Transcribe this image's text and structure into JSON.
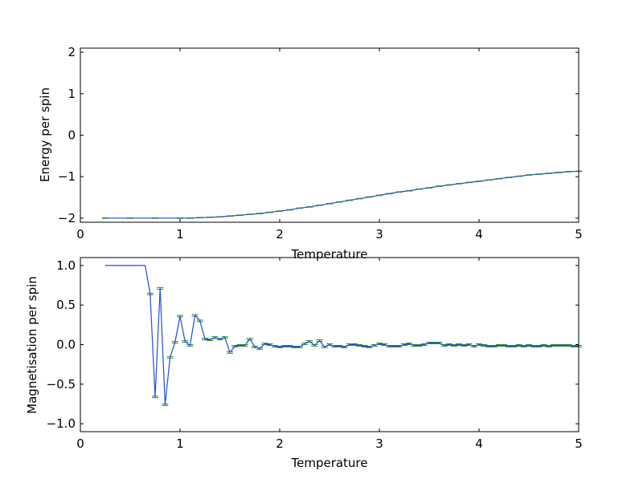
{
  "chart_data": [
    {
      "type": "line",
      "xlabel": "Temperature",
      "ylabel": "Energy per spin",
      "xlim": [
        0,
        5
      ],
      "ylim": [
        -2.1,
        2.1
      ],
      "xticks": [
        "0",
        "1",
        "2",
        "3",
        "4",
        "5"
      ],
      "yticks": [
        "−2",
        "−1",
        "0",
        "1",
        "2"
      ],
      "xtick_values": [
        0,
        1,
        2,
        3,
        4,
        5
      ],
      "ytick_values": [
        -2,
        -1,
        0,
        1,
        2
      ],
      "line_color": "#1f4fd8",
      "errorbar_color": "#2e8b2e",
      "x": [
        0.25,
        0.5,
        0.75,
        1.0,
        1.1,
        1.2,
        1.3,
        1.4,
        1.5,
        1.6,
        1.7,
        1.8,
        1.9,
        2.0,
        2.1,
        2.2,
        2.3,
        2.4,
        2.5,
        2.6,
        2.7,
        2.8,
        2.9,
        3.0,
        3.1,
        3.2,
        3.3,
        3.4,
        3.5,
        3.6,
        3.7,
        3.8,
        3.9,
        4.0,
        4.1,
        4.2,
        4.3,
        4.4,
        4.5,
        4.6,
        4.7,
        4.8,
        4.9,
        5.0
      ],
      "values": [
        -2.0,
        -2.0,
        -2.0,
        -2.0,
        -2.0,
        -1.99,
        -1.98,
        -1.97,
        -1.95,
        -1.93,
        -1.91,
        -1.89,
        -1.86,
        -1.83,
        -1.8,
        -1.76,
        -1.73,
        -1.69,
        -1.65,
        -1.61,
        -1.57,
        -1.53,
        -1.49,
        -1.45,
        -1.41,
        -1.37,
        -1.34,
        -1.3,
        -1.27,
        -1.23,
        -1.2,
        -1.17,
        -1.14,
        -1.11,
        -1.08,
        -1.05,
        -1.02,
        -0.99,
        -0.96,
        -0.94,
        -0.92,
        -0.9,
        -0.88,
        -0.87
      ]
    },
    {
      "type": "line",
      "xlabel": "Temperature",
      "ylabel": "Magnetisation per spin",
      "xlim": [
        0,
        5
      ],
      "ylim": [
        -1.1,
        1.1
      ],
      "xticks": [
        "0",
        "1",
        "2",
        "3",
        "4",
        "5"
      ],
      "yticks": [
        "−1.0",
        "−0.5",
        "0.0",
        "0.5",
        "1.0"
      ],
      "xtick_values": [
        0,
        1,
        2,
        3,
        4,
        5
      ],
      "ytick_values": [
        -1.0,
        -0.5,
        0.0,
        0.5,
        1.0
      ],
      "line_color": "#1f4fd8",
      "errorbar_color": "#2e8b2e",
      "x": [
        0.25,
        0.3,
        0.35,
        0.4,
        0.45,
        0.5,
        0.55,
        0.6,
        0.65,
        0.7,
        0.75,
        0.8,
        0.85,
        0.9,
        0.95,
        1.0,
        1.05,
        1.1,
        1.15,
        1.2,
        1.25,
        1.3,
        1.35,
        1.4,
        1.45,
        1.5,
        1.55,
        1.6,
        1.65,
        1.7,
        1.75,
        1.8,
        1.85,
        1.9,
        1.95,
        2.0,
        2.05,
        2.1,
        2.15,
        2.2,
        2.25,
        2.3,
        2.35,
        2.4,
        2.45,
        2.5,
        2.55,
        2.6,
        2.65,
        2.7,
        2.75,
        2.8,
        2.85,
        2.9,
        2.95,
        3.0,
        3.05,
        3.1,
        3.15,
        3.2,
        3.25,
        3.3,
        3.35,
        3.4,
        3.45,
        3.5,
        3.55,
        3.6,
        3.65,
        3.7,
        3.75,
        3.8,
        3.85,
        3.9,
        3.95,
        4.0,
        4.05,
        4.1,
        4.15,
        4.2,
        4.25,
        4.3,
        4.35,
        4.4,
        4.45,
        4.5,
        4.55,
        4.6,
        4.65,
        4.7,
        4.75,
        4.8,
        4.85,
        4.9,
        4.95,
        5.0
      ],
      "values": [
        1.0,
        1.0,
        1.0,
        1.0,
        1.0,
        1.0,
        1.0,
        1.0,
        1.0,
        0.64,
        -0.66,
        0.71,
        -0.76,
        -0.16,
        0.03,
        0.36,
        0.04,
        -0.01,
        0.37,
        0.3,
        0.07,
        0.06,
        0.09,
        0.07,
        0.09,
        -0.1,
        -0.02,
        -0.01,
        -0.01,
        0.07,
        -0.03,
        -0.05,
        0.01,
        0.0,
        -0.02,
        -0.03,
        -0.02,
        -0.02,
        -0.03,
        -0.03,
        0.01,
        0.04,
        -0.01,
        0.05,
        -0.03,
        0.0,
        -0.02,
        -0.02,
        -0.03,
        0.0,
        0.0,
        -0.01,
        -0.02,
        -0.03,
        -0.01,
        0.01,
        0.0,
        -0.02,
        -0.02,
        -0.02,
        0.0,
        0.01,
        -0.01,
        -0.01,
        0.0,
        0.02,
        0.02,
        0.02,
        -0.01,
        0.0,
        -0.01,
        0.0,
        -0.01,
        0.0,
        -0.02,
        0.0,
        -0.01,
        -0.02,
        -0.02,
        -0.01,
        -0.01,
        -0.02,
        -0.02,
        -0.01,
        -0.02,
        -0.01,
        -0.02,
        -0.02,
        -0.01,
        -0.02,
        -0.01,
        -0.01,
        -0.01,
        -0.01,
        -0.02,
        -0.02
      ],
      "errors": [
        0.0,
        0.0,
        0.0,
        0.0,
        0.0,
        0.0,
        0.0,
        0.0,
        0.0,
        0.01,
        0.01,
        0.01,
        0.01,
        0.01,
        0.01,
        0.01,
        0.01,
        0.01,
        0.01,
        0.01,
        0.01,
        0.01,
        0.01,
        0.01,
        0.01,
        0.01,
        0.01,
        0.01,
        0.01,
        0.01,
        0.01,
        0.01,
        0.01,
        0.01,
        0.01,
        0.01,
        0.01,
        0.01,
        0.01,
        0.01,
        0.01,
        0.01,
        0.01,
        0.01,
        0.01,
        0.01,
        0.01,
        0.01,
        0.01,
        0.01,
        0.01,
        0.01,
        0.01,
        0.01,
        0.01,
        0.01,
        0.01,
        0.01,
        0.01,
        0.01,
        0.01,
        0.01,
        0.01,
        0.01,
        0.01,
        0.01,
        0.01,
        0.01,
        0.01,
        0.01,
        0.01,
        0.01,
        0.01,
        0.01,
        0.01,
        0.01,
        0.01,
        0.01,
        0.01,
        0.01,
        0.01,
        0.01,
        0.01,
        0.01,
        0.01,
        0.01,
        0.01,
        0.01,
        0.01,
        0.01,
        0.01,
        0.01,
        0.01,
        0.01,
        0.01,
        0.01
      ]
    }
  ]
}
